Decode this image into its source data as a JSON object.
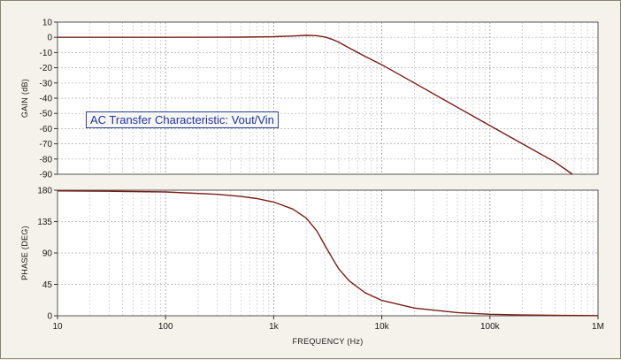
{
  "chart_data": [
    {
      "type": "line",
      "name": "gain",
      "ylabel": "GAIN (dB)",
      "ylim": [
        -90,
        10
      ],
      "yticks": [
        10,
        0,
        -10,
        -20,
        -30,
        -40,
        -50,
        -60,
        -70,
        -80,
        -90
      ],
      "xlim": [
        10,
        1000000
      ],
      "xscale": "log",
      "series": [
        {
          "name": "Vout/Vin gain",
          "color": "#7a1c12",
          "x": [
            10,
            100,
            500,
            1000,
            1500,
            2000,
            2500,
            3000,
            3500,
            4000,
            5000,
            7000,
            10000,
            20000,
            50000,
            100000,
            200000,
            400000,
            580000
          ],
          "y": [
            0,
            0,
            0.1,
            0.4,
            0.9,
            1.3,
            1.1,
            0.2,
            -1.4,
            -3.2,
            -7,
            -12.5,
            -18,
            -30,
            -46,
            -58,
            -70,
            -82,
            -90
          ]
        }
      ],
      "annotation": "AC Transfer Characteristic: Vout/Vin"
    },
    {
      "type": "line",
      "name": "phase",
      "ylabel": "PHASE (DEG)",
      "xlabel": "FREQUENCY (Hz)",
      "ylim": [
        0,
        180
      ],
      "yticks": [
        180,
        135,
        90,
        45,
        0
      ],
      "xlim": [
        10,
        1000000
      ],
      "xscale": "log",
      "xticks": [
        {
          "value": 10,
          "label": "10"
        },
        {
          "value": 100,
          "label": "100"
        },
        {
          "value": 1000,
          "label": "1k"
        },
        {
          "value": 10000,
          "label": "10k"
        },
        {
          "value": 100000,
          "label": "100k"
        },
        {
          "value": 1000000,
          "label": "1M"
        }
      ],
      "series": [
        {
          "name": "Vout/Vin phase",
          "color": "#7a1c12",
          "x": [
            10,
            30,
            100,
            300,
            500,
            700,
            1000,
            1500,
            2000,
            2500,
            3000,
            3500,
            4000,
            5000,
            7000,
            10000,
            20000,
            50000,
            100000,
            200000,
            500000,
            1000000
          ],
          "y": [
            179,
            178.5,
            177.5,
            174,
            171,
            168,
            163,
            153,
            140,
            122,
            100,
            82,
            67,
            50,
            33,
            22,
            11,
            4.5,
            2.2,
            1.1,
            0.5,
            0.3
          ]
        }
      ]
    }
  ]
}
